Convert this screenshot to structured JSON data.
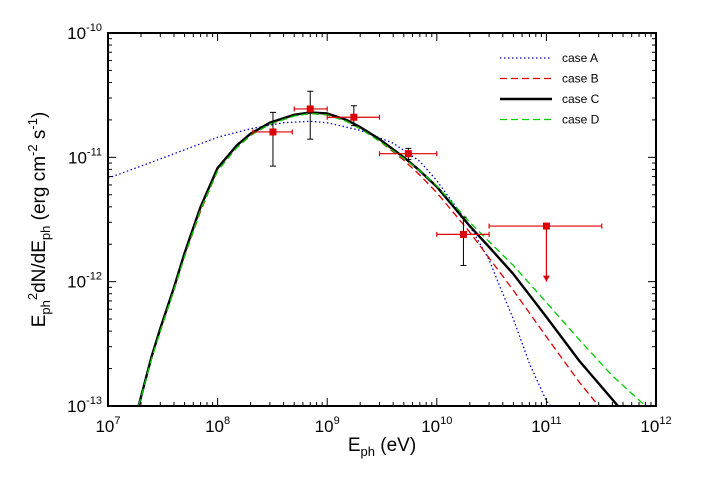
{
  "chart_data": {
    "type": "line",
    "title": "",
    "xlabel": {
      "base": "E",
      "sub": "ph",
      "rest": " (eV)"
    },
    "ylabel": {
      "parts": [
        {
          "t": "E",
          "s": "n"
        },
        {
          "t": "ph",
          "s": "sub"
        },
        {
          "t": "2",
          "s": "sup"
        },
        {
          "t": "dN/dE",
          "s": "n"
        },
        {
          "t": "ph",
          "s": "sub"
        },
        {
          "t": " (erg cm",
          "s": "n"
        },
        {
          "t": "-2",
          "s": "sup"
        },
        {
          "t": " s",
          "s": "n"
        },
        {
          "t": "-1",
          "s": "sup"
        },
        {
          "t": ")",
          "s": "n"
        }
      ]
    },
    "x_scale": "log",
    "y_scale": "log",
    "xlim": [
      10000000.0,
      1000000000000.0
    ],
    "ylim": [
      1e-13,
      1e-10
    ],
    "grid": false,
    "legend_position": "top-right",
    "x_ticks": [
      {
        "value": 10000000.0,
        "base": "10",
        "exp": "7"
      },
      {
        "value": 100000000.0,
        "base": "10",
        "exp": "8"
      },
      {
        "value": 1000000000.0,
        "base": "10",
        "exp": "9"
      },
      {
        "value": 10000000000.0,
        "base": "10",
        "exp": "10"
      },
      {
        "value": 100000000000.0,
        "base": "10",
        "exp": "11"
      },
      {
        "value": 1000000000000.0,
        "base": "10",
        "exp": "12"
      }
    ],
    "y_ticks": [
      {
        "value": 1e-13,
        "base": "10",
        "exp": "-13"
      },
      {
        "value": 1e-12,
        "base": "10",
        "exp": "-12"
      },
      {
        "value": 1e-11,
        "base": "10",
        "exp": "-11"
      },
      {
        "value": 1e-10,
        "base": "10",
        "exp": "-10"
      }
    ],
    "series": [
      {
        "name": "case A",
        "color": "#0000cc",
        "style": "dotted",
        "x": [
          10000000.0,
          20000000.0,
          50000000.0,
          100000000.0,
          200000000.0,
          400000000.0,
          700000000.0,
          1000000000.0,
          2000000000.0,
          4000000000.0,
          7000000000.0,
          10000000000.0,
          20000000000.0,
          30000000000.0,
          40000000000.0,
          50000000000.0,
          70000000000.0,
          100000000000.0,
          110000000000.0
        ],
        "y": [
          6.8e-12,
          8.5e-12,
          1.15e-11,
          1.45e-11,
          1.7e-11,
          1.9e-11,
          1.95e-11,
          1.9e-11,
          1.65e-11,
          1.3e-11,
          9.3e-12,
          6.5e-12,
          2.8e-12,
          1.5e-12,
          8e-13,
          5e-13,
          2.2e-13,
          1.1e-13,
          1e-13
        ]
      },
      {
        "name": "case B",
        "color": "#dd0000",
        "style": "dashed",
        "x": [
          19000000.0,
          25000000.0,
          30000000.0,
          40000000.0,
          50000000.0,
          70000000.0,
          100000000.0,
          150000000.0,
          200000000.0,
          300000000.0,
          500000000.0,
          700000000.0,
          1000000000.0,
          1500000000.0,
          2000000000.0,
          3000000000.0,
          5000000000.0,
          7000000000.0,
          10000000000.0,
          20000000000.0,
          50000000000.0,
          100000000000.0,
          200000000000.0,
          300000000000.0
        ],
        "y": [
          1e-13,
          2.4e-13,
          4e-13,
          8.5e-13,
          1.6e-12,
          3.7e-12,
          7.8e-12,
          1.2e-11,
          1.5e-11,
          1.85e-11,
          2.15e-11,
          2.25e-11,
          2.2e-11,
          1.95e-11,
          1.7e-11,
          1.35e-11,
          9.5e-12,
          7.2e-12,
          5.2e-12,
          2.5e-12,
          8.5e-13,
          3.6e-13,
          1.55e-13,
          1e-13
        ]
      },
      {
        "name": "case C",
        "color": "#000000",
        "style": "solid",
        "x": [
          19000000.0,
          25000000.0,
          30000000.0,
          40000000.0,
          50000000.0,
          70000000.0,
          100000000.0,
          150000000.0,
          200000000.0,
          300000000.0,
          500000000.0,
          700000000.0,
          1000000000.0,
          1500000000.0,
          2000000000.0,
          3000000000.0,
          5000000000.0,
          7000000000.0,
          10000000000.0,
          20000000000.0,
          30000000000.0,
          50000000000.0,
          100000000000.0,
          200000000000.0,
          450000000000.0
        ],
        "y": [
          1e-13,
          2.5e-13,
          4.2e-13,
          9e-13,
          1.7e-12,
          4e-12,
          8.2e-12,
          1.25e-11,
          1.55e-11,
          1.9e-11,
          2.2e-11,
          2.3e-11,
          2.25e-11,
          2e-11,
          1.75e-11,
          1.4e-11,
          1e-11,
          7.8e-12,
          5.8e-12,
          2.8e-12,
          1.9e-12,
          1.15e-12,
          5.2e-13,
          2.3e-13,
          1e-13
        ]
      },
      {
        "name": "case D",
        "color": "#00cc00",
        "style": "dashed",
        "x": [
          19000000.0,
          25000000.0,
          30000000.0,
          40000000.0,
          50000000.0,
          70000000.0,
          100000000.0,
          150000000.0,
          200000000.0,
          300000000.0,
          500000000.0,
          700000000.0,
          1000000000.0,
          1500000000.0,
          2000000000.0,
          3000000000.0,
          5000000000.0,
          7000000000.0,
          10000000000.0,
          20000000000.0,
          30000000000.0,
          50000000000.0,
          100000000000.0,
          200000000000.0,
          400000000000.0,
          800000000000.0
        ],
        "y": [
          1e-13,
          2.4e-13,
          4e-13,
          8.6e-13,
          1.6e-12,
          3.8e-12,
          7.8e-12,
          1.2e-11,
          1.5e-11,
          1.85e-11,
          2.15e-11,
          2.25e-11,
          2.2e-11,
          1.95e-11,
          1.7e-11,
          1.35e-11,
          9.8e-12,
          7.8e-12,
          5.9e-12,
          3e-12,
          2.1e-12,
          1.35e-12,
          6.8e-13,
          3.4e-13,
          1.75e-13,
          1e-13
        ]
      }
    ],
    "data_points": {
      "color": "#dd0000",
      "points": [
        {
          "x": 320000000.0,
          "y": 1.6e-11,
          "xerr": [
            210000000.0,
            480000000.0
          ],
          "yerr": [
            8.5e-12,
            2.3e-11
          ],
          "upper_limit": false
        },
        {
          "x": 700000000.0,
          "y": 2.45e-11,
          "xerr": [
            500000000.0,
            1000000000.0
          ],
          "yerr": [
            1.4e-11,
            3.4e-11
          ],
          "upper_limit": false
        },
        {
          "x": 1750000000.0,
          "y": 2.1e-11,
          "xerr": [
            1000000000.0,
            3000000000.0
          ],
          "yerr": [
            1.8e-11,
            2.6e-11
          ],
          "upper_limit": false
        },
        {
          "x": 5500000000.0,
          "y": 1.07e-11,
          "xerr": [
            3000000000.0,
            10000000000.0
          ],
          "yerr": [
            9.6e-12,
            1.18e-11
          ],
          "upper_limit": false
        },
        {
          "x": 17500000000.0,
          "y": 2.4e-12,
          "xerr": [
            10000000000.0,
            30000000000.0
          ],
          "yerr": [
            1.35e-12,
            3.3e-12
          ],
          "upper_limit": false
        },
        {
          "x": 100000000000.0,
          "y": 2.8e-12,
          "xerr": [
            30000000000.0,
            320000000000.0
          ],
          "yerr": [
            1e-12,
            2.8e-12
          ],
          "upper_limit": true
        }
      ]
    }
  }
}
